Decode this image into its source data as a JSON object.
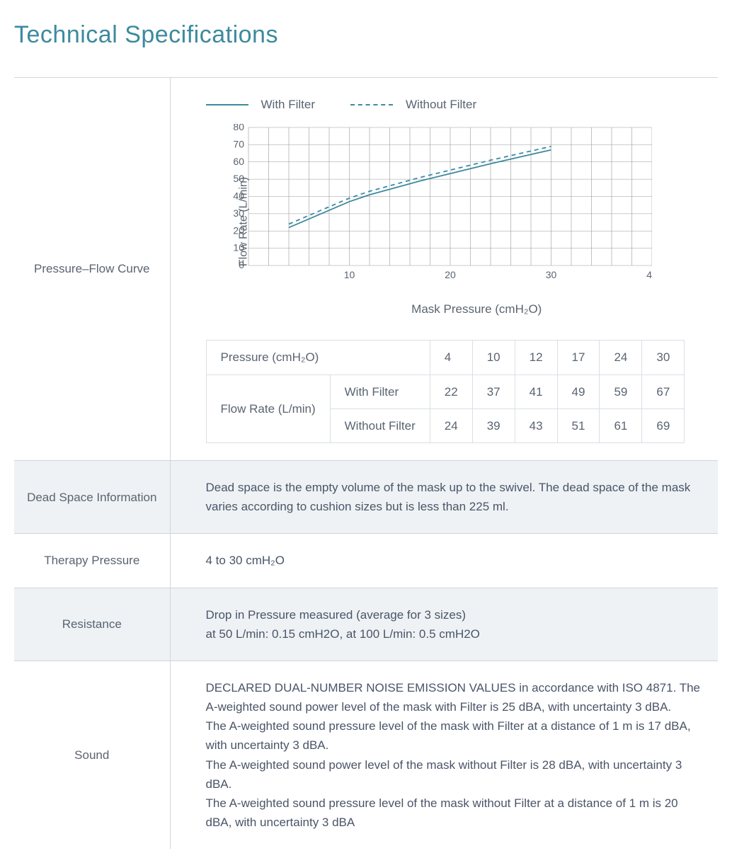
{
  "title": "Technical Specifications",
  "accent_color": "#3d8a9e",
  "text_color": "#4a5568",
  "grid_color": "#dadfe4",
  "row_alt_bg": "#eef2f5",
  "chart_section": {
    "label": "Pressure–Flow Curve",
    "legend": {
      "series_a": "With Filter",
      "series_b": "Without Filter"
    },
    "chart": {
      "type": "line",
      "line_color": "#3d8a9e",
      "grid_color": "#999999",
      "background": "#ffffff",
      "xlabel": "Mask Pressure  (cmH₂O)",
      "ylabel": "Flow Rate (L/min)",
      "xlim": [
        0,
        40
      ],
      "ylim": [
        0,
        80
      ],
      "xtick_step": 10,
      "ytick_step": 10,
      "minor_x_step": 2,
      "series": {
        "with_filter": {
          "style": "solid",
          "points": [
            [
              4,
              22
            ],
            [
              10,
              37
            ],
            [
              12,
              41
            ],
            [
              17,
              49
            ],
            [
              24,
              59
            ],
            [
              30,
              67
            ]
          ]
        },
        "without_filter": {
          "style": "dashed",
          "points": [
            [
              4,
              24
            ],
            [
              10,
              39
            ],
            [
              12,
              43
            ],
            [
              17,
              51
            ],
            [
              24,
              61
            ],
            [
              30,
              69
            ]
          ]
        }
      },
      "line_width": 1.8,
      "label_fontsize": 16,
      "tick_fontsize": 14
    },
    "data_table": {
      "header_label": "Pressure (cmH₂O)",
      "columns": [
        "4",
        "10",
        "12",
        "17",
        "24",
        "30"
      ],
      "row_group_label": "Flow Rate (L/min)",
      "rows": [
        {
          "label": "With Filter",
          "values": [
            "22",
            "37",
            "41",
            "49",
            "59",
            "67"
          ]
        },
        {
          "label": "Without Filter",
          "values": [
            "24",
            "39",
            "43",
            "51",
            "61",
            "69"
          ]
        }
      ]
    }
  },
  "rows": [
    {
      "label": "Dead Space Information",
      "text": "Dead space is the empty volume of the mask up to the swivel. The dead space of the mask varies according to cushion sizes but is less than 225 ml.",
      "alt": true
    },
    {
      "label": "Therapy Pressure",
      "text": "4 to 30 cmH₂O",
      "alt": false
    },
    {
      "label": "Resistance",
      "text": "Drop in Pressure measured (average for 3 sizes)\nat 50 L/min: 0.15 cmH2O, at 100 L/min: 0.5 cmH2O",
      "alt": true
    },
    {
      "label": "Sound",
      "text": "DECLARED DUAL-NUMBER NOISE EMISSION VALUES in accordance with ISO 4871. The A-weighted sound power level of the mask with Filter is 25 dBA, with uncertainty 3 dBA.\nThe A-weighted sound pressure level of the mask with Filter at a distance of 1 m is 17 dBA, with uncertainty 3 dBA.\nThe A-weighted sound power level of the mask without Filter is 28 dBA, with uncertainty 3 dBA.\nThe A-weighted sound pressure level of the mask without Filter at a distance of 1 m is 20 dBA, with uncertainty 3 dBA",
      "alt": false
    }
  ]
}
